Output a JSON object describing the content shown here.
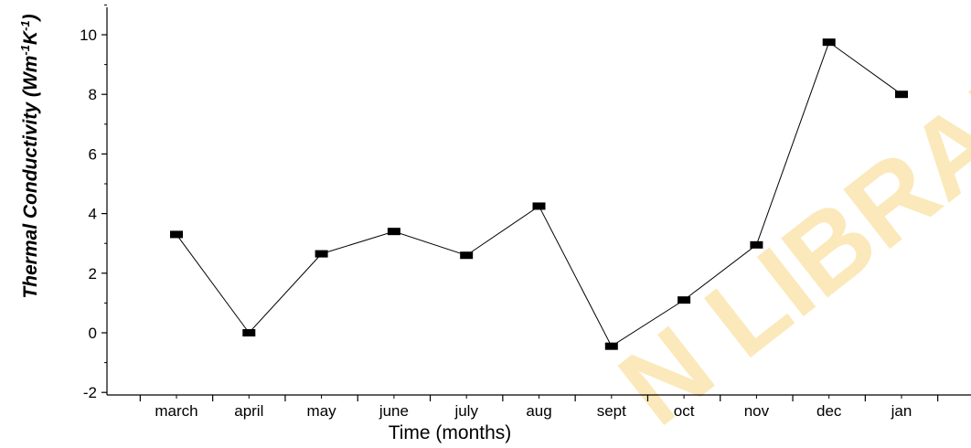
{
  "chart_data": {
    "type": "line",
    "categories": [
      "march",
      "april",
      "may",
      "june",
      "july",
      "aug",
      "sept",
      "oct",
      "nov",
      "dec",
      "jan"
    ],
    "series": [
      {
        "values": [
          3.3,
          0.0,
          2.65,
          3.4,
          2.6,
          4.25,
          -0.45,
          1.1,
          2.95,
          9.75,
          8.0
        ]
      }
    ],
    "xlabel": "Time (months)",
    "ylabel_main": "Thermal Conductivity (Wm",
    "ylabel_sup1": "-1",
    "ylabel_mid": "K",
    "ylabel_sup2": "-1",
    "ylabel_end": ")",
    "ylim": [
      -2,
      11
    ],
    "yticks": [
      -2,
      0,
      2,
      4,
      6,
      8,
      10
    ],
    "marker": "square",
    "line_color": "#000000",
    "grid": false,
    "legend": "none"
  },
  "watermark": {
    "text": "N LIBRARY",
    "color": "#f7d06a"
  }
}
